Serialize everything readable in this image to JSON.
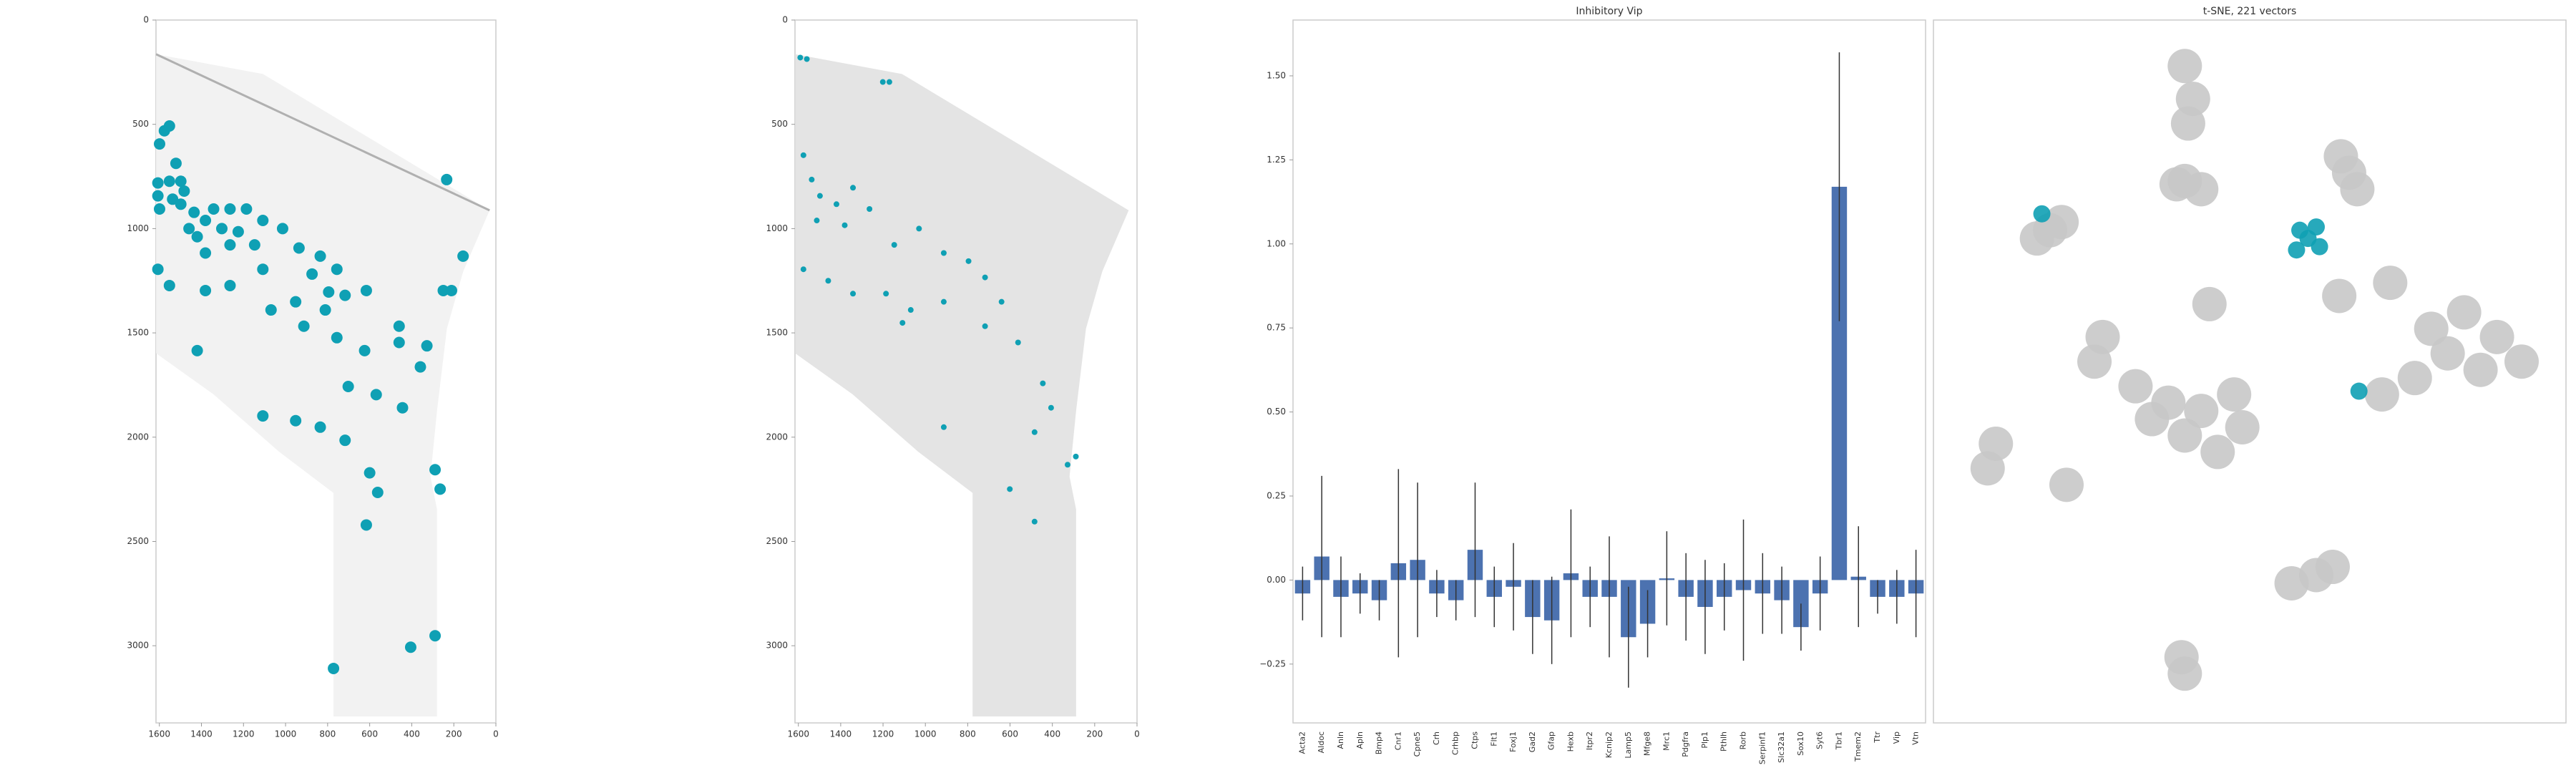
{
  "chart_data": [
    {
      "type": "scatter",
      "color": "#0fa0b4",
      "x": [
        1576,
        1552,
        1599,
        1521,
        1607,
        1552,
        1498,
        1607,
        1537,
        1482,
        1599,
        1498,
        1435,
        1381,
        1459,
        1342,
        1264,
        1303,
        1186,
        1225,
        1420,
        1108,
        1381,
        1264,
        1147,
        1014,
        936,
        835,
        874,
        1607,
        1552,
        1381,
        1264,
        1108,
        952,
        756,
        717,
        795,
        1069,
        913,
        811,
        616,
        460,
        250,
        211,
        156,
        234,
        1420,
        756,
        624,
        460,
        328,
        359,
        702,
        569,
        444,
        1108,
        952,
        835,
        717,
        600,
        289,
        265,
        562,
        616,
        772,
        289,
        405
      ],
      "y": [
        531,
        508,
        594,
        687,
        781,
        773,
        773,
        843,
        859,
        820,
        906,
        883,
        922,
        961,
        1000,
        906,
        906,
        1000,
        906,
        1015,
        1039,
        961,
        1117,
        1078,
        1078,
        1000,
        1093,
        1132,
        1218,
        1195,
        1273,
        1297,
        1273,
        1195,
        1351,
        1195,
        1320,
        1304,
        1390,
        1468,
        1390,
        1297,
        1468,
        1297,
        1297,
        1132,
        765,
        1585,
        1523,
        1585,
        1546,
        1562,
        1663,
        1757,
        1796,
        1859,
        1898,
        1921,
        1952,
        2015,
        2171,
        2156,
        2249,
        2265,
        2421,
        3109,
        2952,
        3007
      ],
      "xlim": [
        1616,
        0
      ],
      "ylim": [
        3370,
        0
      ],
      "xticks": [
        1600,
        1400,
        1200,
        1000,
        800,
        600,
        400,
        200,
        0
      ],
      "yticks": [
        0,
        500,
        1000,
        1500,
        2000,
        2500,
        3000
      ]
    },
    {
      "type": "scatter",
      "color": "#0fa0b4",
      "x": [
        1591,
        1560,
        1201,
        1170,
        1576,
        1537,
        1498,
        1420,
        1342,
        1513,
        1381,
        1264,
        1147,
        1030,
        913,
        796,
        718,
        1576,
        1459,
        1342,
        1186,
        1069,
        913,
        640,
        718,
        1108,
        562,
        445,
        406,
        484,
        328,
        289,
        601,
        913,
        484
      ],
      "y": [
        180,
        187,
        297,
        297,
        648,
        765,
        843,
        883,
        804,
        961,
        984,
        906,
        1078,
        1000,
        1117,
        1156,
        1234,
        1195,
        1250,
        1312,
        1312,
        1390,
        1351,
        1351,
        1468,
        1452,
        1546,
        1742,
        1859,
        1976,
        2132,
        2093,
        2249,
        1952,
        2405
      ],
      "xlim": [
        1616,
        0
      ],
      "ylim": [
        3370,
        0
      ],
      "xticks": [
        1600,
        1400,
        1200,
        1000,
        800,
        600,
        400,
        200,
        0
      ],
      "yticks": [
        0,
        500,
        1000,
        1500,
        2000,
        2500,
        3000
      ]
    },
    {
      "type": "bar",
      "title": "Inhibitory Vip",
      "color": "#4c72b0",
      "categories": [
        "Acta2",
        "Aldoc",
        "Anln",
        "Apln",
        "Bmp4",
        "Cnr1",
        "Cpne5",
        "Crh",
        "Crhbp",
        "Ctps",
        "Flt1",
        "Foxj1",
        "Gad2",
        "Gfap",
        "Hexb",
        "Itpr2",
        "Kcnip2",
        "Lamp5",
        "Mfge8",
        "Mrc1",
        "Pdgfra",
        "Plp1",
        "Pthlh",
        "Rorb",
        "Serpinf1",
        "Slc32a1",
        "Sox10",
        "Syt6",
        "Tbr1",
        "Tmem2",
        "Ttr",
        "Vip",
        "Vtn"
      ],
      "values": [
        -0.04,
        0.07,
        -0.05,
        -0.04,
        -0.06,
        0.05,
        0.06,
        -0.04,
        -0.06,
        0.09,
        -0.05,
        -0.02,
        -0.11,
        -0.12,
        0.02,
        -0.05,
        -0.05,
        -0.17,
        -0.13,
        0.005,
        -0.05,
        -0.08,
        -0.05,
        -0.03,
        -0.04,
        -0.06,
        -0.14,
        -0.04,
        1.17,
        0.01,
        -0.05,
        -0.05,
        -0.04
      ],
      "errors": [
        0.08,
        0.24,
        0.12,
        0.06,
        0.06,
        0.28,
        0.23,
        0.07,
        0.06,
        0.2,
        0.09,
        0.13,
        0.11,
        0.13,
        0.19,
        0.09,
        0.18,
        0.15,
        0.1,
        0.14,
        0.13,
        0.14,
        0.1,
        0.21,
        0.12,
        0.1,
        0.07,
        0.11,
        0.4,
        0.15,
        0.05,
        0.08,
        0.13
      ],
      "ylim": [
        -0.425,
        1.666
      ],
      "yticks": [
        {
          "value": -0.25,
          "label": "−0.25"
        },
        {
          "value": 0,
          "label": "0.00"
        },
        {
          "value": 0.25,
          "label": "0.25"
        },
        {
          "value": 0.5,
          "label": "0.50"
        },
        {
          "value": 0.75,
          "label": "0.75"
        },
        {
          "value": 1,
          "label": "1.00"
        },
        {
          "value": 1.25,
          "label": "1.25"
        },
        {
          "value": 1.5,
          "label": "1.50"
        }
      ]
    },
    {
      "type": "scatter",
      "title": "t-SNE, 221 vectors",
      "series": [
        {
          "color": "#c8c8c8",
          "x": [
            153,
            158,
            155,
            153,
            148,
            163,
            253,
            248,
            258,
            71,
            63,
            78,
            247,
            278,
            168,
            103,
            98,
            123,
            143,
            163,
            183,
            188,
            173,
            153,
            133,
            303,
            323,
            343,
            358,
            333,
            293,
            273,
            313,
            38,
            33,
            81,
            233,
            218,
            243,
            153,
            151
          ],
          "y": [
            28,
            48,
            63,
            98,
            100,
            103,
            93,
            83,
            103,
            128,
            133,
            123,
            168,
            160,
            173,
            193,
            208,
            223,
            233,
            238,
            228,
            248,
            263,
            253,
            243,
            188,
            178,
            193,
            208,
            213,
            218,
            228,
            203,
            258,
            273,
            283,
            338,
            343,
            333,
            398,
            388
          ]
        },
        {
          "color": "#0fa0b4",
          "x": [
            228,
            223,
            235,
            221,
            233,
            259,
            66
          ],
          "y": [
            133,
            128,
            138,
            140,
            126,
            226,
            118
          ]
        }
      ],
      "xlim": [
        0,
        385
      ],
      "ylim": [
        428,
        0
      ]
    }
  ]
}
